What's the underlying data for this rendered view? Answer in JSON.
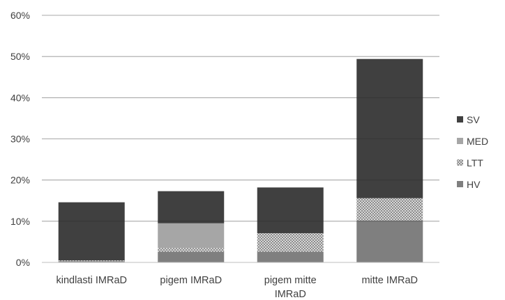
{
  "chart_data": {
    "type": "bar",
    "stacked": true,
    "categories": [
      [
        "kindlasti IMRaD"
      ],
      [
        "pigem IMRaD"
      ],
      [
        "pigem mitte",
        "IMRaD"
      ],
      [
        "mitte IMRaD"
      ]
    ],
    "y_ticks": [
      "0%",
      "10%",
      "20%",
      "30%",
      "40%",
      "50%",
      "60%"
    ],
    "ylim": [
      0,
      60
    ],
    "grid": true,
    "legend_position": "right",
    "series": [
      {
        "name": "HV",
        "color": "#7f7f7f",
        "pattern": "solid",
        "values": [
          0.3,
          2.6,
          2.6,
          10.2
        ]
      },
      {
        "name": "LTT",
        "color": "#bfbfbf",
        "pattern": "dotted",
        "values": [
          0.2,
          0.9,
          4.5,
          5.4
        ]
      },
      {
        "name": "MED",
        "color": "#a6a6a6",
        "pattern": "solid",
        "values": [
          0.0,
          6.0,
          0.0,
          0.0
        ]
      },
      {
        "name": "SV",
        "color": "#404040",
        "pattern": "solid",
        "values": [
          14.1,
          7.8,
          11.1,
          33.8
        ]
      }
    ],
    "legend_order": [
      "SV",
      "MED",
      "LTT",
      "HV"
    ],
    "title": "",
    "xlabel": "",
    "ylabel": ""
  }
}
